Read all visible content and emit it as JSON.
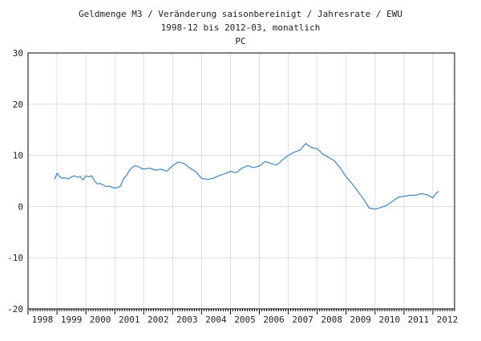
{
  "chart_data": {
    "type": "line",
    "title_lines": [
      "Geldmenge M3 / Veränderung saisonbereinigt / Jahresrate / EWU",
      "1998-12 bis 2012-03, monatlich",
      "PC"
    ],
    "xlabel": "",
    "ylabel": "",
    "ylim": [
      -20,
      30
    ],
    "yticks": [
      -20,
      -10,
      0,
      10,
      20,
      30
    ],
    "xlim": [
      1998,
      2012.75
    ],
    "year_labels": [
      "1998",
      "1999",
      "2000",
      "2001",
      "2002",
      "2003",
      "2004",
      "2005",
      "2006",
      "2007",
      "2008",
      "2009",
      "2010",
      "2011",
      "2012"
    ],
    "grid": true,
    "colors": {
      "line": "#3b86c4",
      "grid": "#dddddd",
      "axis": "#000000"
    },
    "series": [
      {
        "x": [
          1998.92,
          1999.0,
          1999.1,
          1999.2,
          1999.3,
          1999.4,
          1999.5,
          1999.6,
          1999.7,
          1999.8,
          1999.9,
          2000.0,
          2000.1,
          2000.2,
          2000.3,
          2000.4,
          2000.5,
          2000.6,
          2000.7,
          2000.8,
          2000.9,
          2001.0,
          2001.1,
          2001.2,
          2001.3,
          2001.4,
          2001.5,
          2001.6,
          2001.7,
          2001.8,
          2001.9,
          2002.0,
          2002.2,
          2002.4,
          2002.6,
          2002.8,
          2003.0,
          2003.2,
          2003.4,
          2003.6,
          2003.8,
          2004.0,
          2004.2,
          2004.4,
          2004.6,
          2004.8,
          2005.0,
          2005.2,
          2005.4,
          2005.6,
          2005.8,
          2006.0,
          2006.2,
          2006.4,
          2006.6,
          2006.8,
          2007.0,
          2007.2,
          2007.4,
          2007.6,
          2007.8,
          2008.0,
          2008.2,
          2008.4,
          2008.6,
          2008.8,
          2009.0,
          2009.2,
          2009.4,
          2009.6,
          2009.8,
          2010.0,
          2010.2,
          2010.4,
          2010.6,
          2010.8,
          2011.0,
          2011.2,
          2011.4,
          2011.6,
          2011.8,
          2012.0,
          2012.1,
          2012.2
        ],
        "y": [
          5.3,
          6.5,
          5.8,
          5.5,
          5.6,
          5.4,
          5.8,
          6.0,
          5.7,
          5.9,
          5.2,
          6.0,
          5.8,
          6.0,
          5.0,
          4.4,
          4.5,
          4.2,
          3.9,
          4.0,
          3.8,
          3.6,
          3.7,
          4.0,
          5.4,
          6.0,
          7.0,
          7.6,
          8.0,
          7.8,
          7.5,
          7.3,
          7.5,
          7.1,
          7.3,
          6.9,
          8.0,
          8.7,
          8.4,
          7.5,
          6.8,
          5.5,
          5.3,
          5.5,
          6.0,
          6.4,
          6.9,
          6.6,
          7.5,
          8.0,
          7.6,
          7.9,
          8.8,
          8.4,
          8.1,
          9.1,
          10.0,
          10.6,
          11.0,
          12.3,
          11.5,
          11.3,
          10.2,
          9.6,
          8.9,
          7.5,
          5.8,
          4.5,
          3.0,
          1.5,
          -0.3,
          -0.5,
          -0.2,
          0.2,
          1.0,
          1.8,
          2.0,
          2.2,
          2.2,
          2.5,
          2.3,
          1.7,
          2.5,
          3.0
        ]
      }
    ]
  }
}
